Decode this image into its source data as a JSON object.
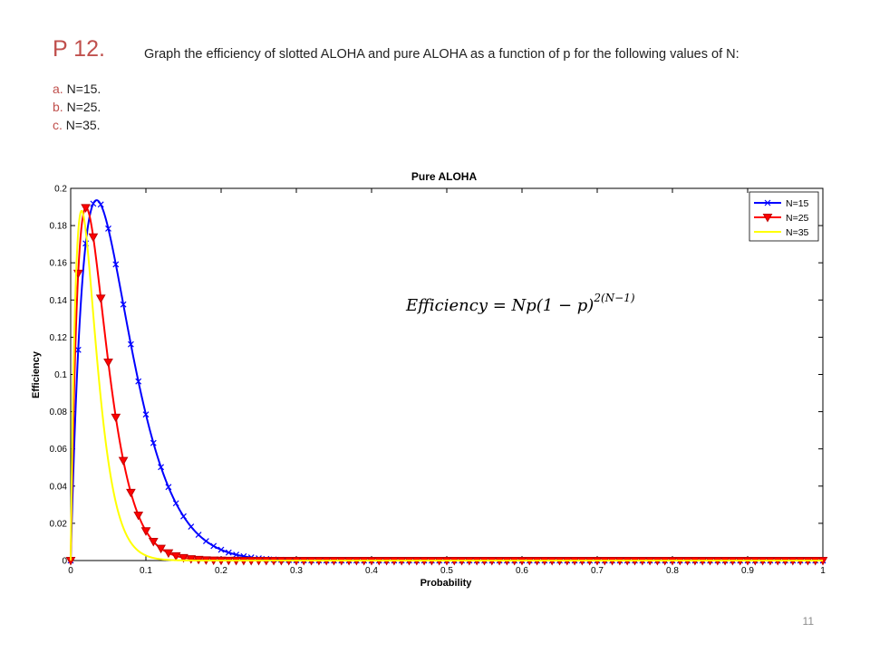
{
  "header": {
    "problem_number": "P 12.",
    "problem_text": "Graph the efficiency of slotted ALOHA and pure ALOHA as a function of p for the following values of N:",
    "parts": [
      {
        "letter": "a.",
        "text": "N=15."
      },
      {
        "letter": "b.",
        "text": "N=25."
      },
      {
        "letter": "c.",
        "text": "N=35."
      }
    ]
  },
  "formula": {
    "base": "Efficiency = Np(1 − p)",
    "exponent": "2(N−1)"
  },
  "slide_number": "11",
  "chart_data": {
    "type": "line",
    "title": "Pure ALOHA",
    "xlabel": "Probability",
    "ylabel": "Efficiency",
    "xlim": [
      0,
      1
    ],
    "ylim": [
      0,
      0.2
    ],
    "xticks": [
      "0",
      "0.1",
      "0.2",
      "0.3",
      "0.4",
      "0.5",
      "0.6",
      "0.7",
      "0.8",
      "0.9",
      "1"
    ],
    "yticks": [
      "0",
      "0.02",
      "0.04",
      "0.06",
      "0.08",
      "0.1",
      "0.12",
      "0.14",
      "0.16",
      "0.18",
      "0.2"
    ],
    "grid": false,
    "legend_position": "top-right",
    "series": [
      {
        "name": "N=15",
        "N": 15,
        "color": "#0000ff",
        "marker": "x"
      },
      {
        "name": "N=25",
        "N": 25,
        "color": "#ff0000",
        "marker": "triangle-down"
      },
      {
        "name": "N=35",
        "N": 35,
        "color": "#ffff00",
        "marker": "none"
      }
    ],
    "x": [
      0,
      0.01,
      0.02,
      0.03,
      0.04,
      0.05,
      0.06,
      0.07,
      0.08,
      0.09,
      0.1,
      0.11,
      0.12,
      0.13,
      0.14,
      0.15,
      0.16,
      0.17,
      0.18,
      0.19,
      0.2,
      0.22,
      0.24,
      0.26,
      0.28,
      0.3,
      0.35,
      0.4,
      0.45,
      0.5,
      0.55,
      0.6,
      0.65,
      0.7,
      0.75,
      0.8,
      0.85,
      0.9,
      0.95,
      1
    ],
    "values": {
      "N=15": [
        0,
        0.1131,
        0.1795,
        0.192,
        0.1865,
        0.1739,
        0.1587,
        0.1427,
        0.1272,
        0.1126,
        0.0991,
        0.0869,
        0.0758,
        0.0658,
        0.057,
        0.0492,
        0.0423,
        0.0363,
        0.031,
        0.0264,
        0.0224,
        0.0161,
        0.0114,
        0.008,
        0.0055,
        0.0037,
        0.0014,
        0.0005,
        0.0002,
        0.0001,
        0,
        0,
        0,
        0,
        0,
        0,
        0,
        0,
        0,
        0
      ],
      "N=25": [
        0,
        0.154,
        0.1891,
        0.1741,
        0.1448,
        0.1141,
        0.0869,
        0.0645,
        0.0468,
        0.0333,
        0.0233,
        0.0161,
        0.0109,
        0.0073,
        0.0049,
        0.0032,
        0.0021,
        0.0013,
        0.0008,
        0.0005,
        0.0003,
        0.0001,
        5e-05,
        0,
        0,
        0,
        0,
        0,
        0,
        0,
        0,
        0,
        0,
        0,
        0,
        0,
        0,
        0,
        0,
        0
      ],
      "N=35": [
        0,
        0.1775,
        0.1754,
        0.1303,
        0.0859,
        0.0527,
        0.0307,
        0.0172,
        0.0093,
        0.0049,
        0.0025,
        0.0012,
        0.0006,
        0.0003,
        0.0001,
        6e-05,
        3e-05,
        0,
        0,
        0,
        0,
        0,
        0,
        0,
        0,
        0,
        0,
        0,
        0,
        0,
        0,
        0,
        0,
        0,
        0,
        0,
        0,
        0,
        0,
        0
      ]
    }
  }
}
